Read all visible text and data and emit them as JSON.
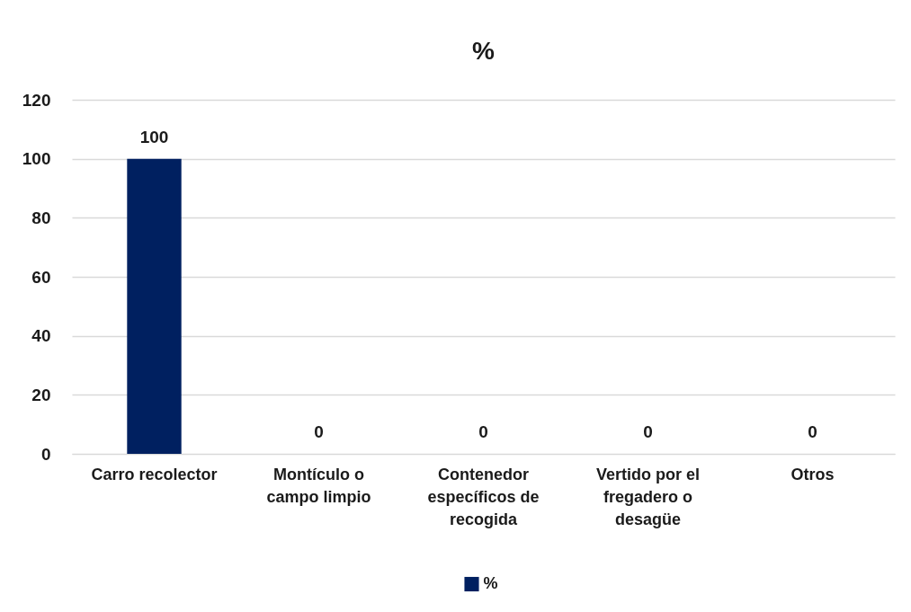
{
  "chart_data": {
    "type": "bar",
    "title": "%",
    "categories": [
      "Carro recolector",
      "Montículo o campo limpio",
      "Contenedor específicos de recogida",
      "Vertido por el fregadero o desagüe",
      "Otros"
    ],
    "series": [
      {
        "name": "%",
        "color": "#002060",
        "values": [
          100,
          0,
          0,
          0,
          0
        ]
      }
    ],
    "ylim": [
      0,
      120
    ],
    "yticks": [
      0,
      20,
      40,
      60,
      80,
      100,
      120
    ],
    "grid": "y",
    "data_labels": true,
    "legend": "bottom"
  }
}
